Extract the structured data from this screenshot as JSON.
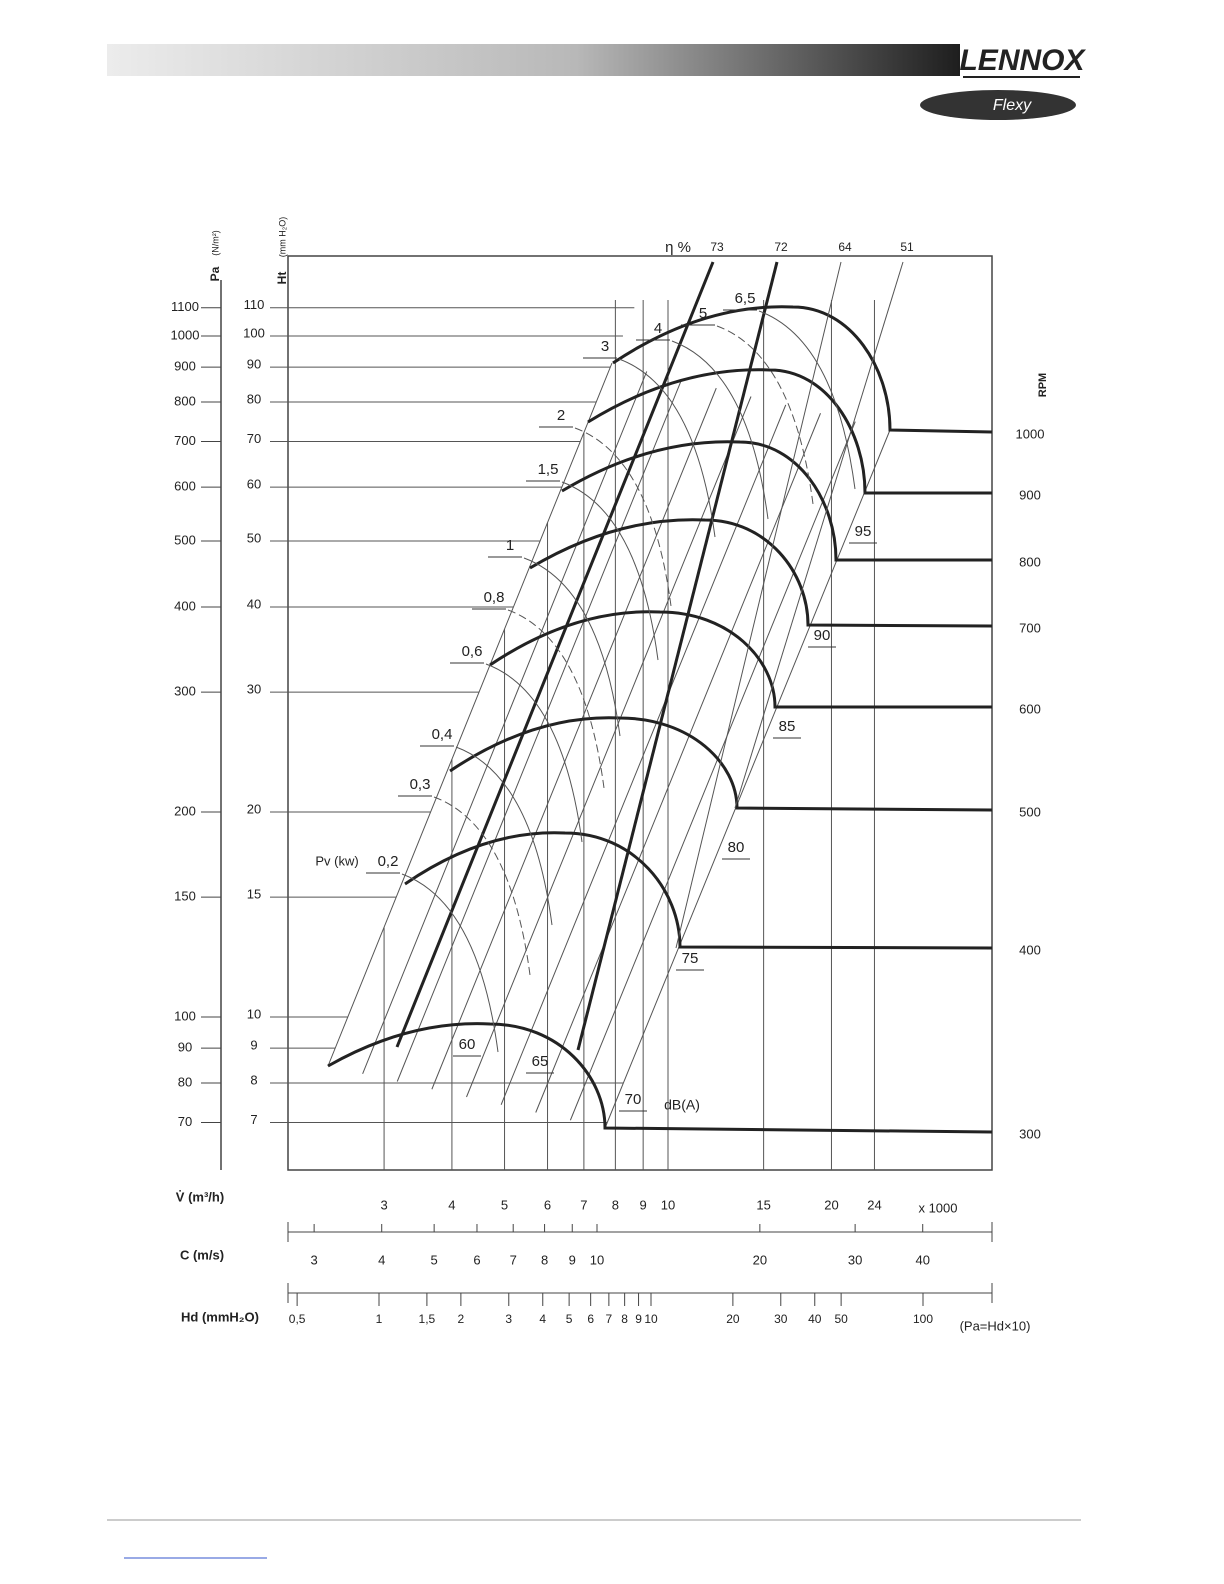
{
  "header": {
    "brand": "LENNOX",
    "product": "Flexy"
  },
  "diagram": {
    "pa_axis": {
      "title": "Pa",
      "unit": "(N/m²)",
      "ticks": [
        "1100",
        "1000",
        "900",
        "800",
        "700",
        "600",
        "500",
        "400",
        "300",
        "200",
        "150",
        "100",
        "90",
        "80",
        "70"
      ]
    },
    "ht_axis": {
      "title": "Ht",
      "unit": "(mm H₂O)",
      "ticks": [
        "110",
        "100",
        "90",
        "80",
        "70",
        "60",
        "50",
        "40",
        "30",
        "20",
        "15",
        "10",
        "9",
        "8",
        "7"
      ]
    },
    "rpm_axis": {
      "title": "RPM",
      "ticks": [
        "1000",
        "900",
        "800",
        "700",
        "600",
        "500",
        "400",
        "300"
      ]
    },
    "efficiency": {
      "title": "η %",
      "values": [
        "73",
        "72",
        "64",
        "51"
      ]
    },
    "power": {
      "title": "Pv (kw)",
      "values": [
        "0,2",
        "0,3",
        "0,4",
        "0,6",
        "0,8",
        "1",
        "1,5",
        "2",
        "3",
        "4",
        "5",
        "6,5"
      ]
    },
    "noise": {
      "unit": "dB(A)",
      "values": [
        "60",
        "65",
        "70",
        "75",
        "80",
        "85",
        "90",
        "95"
      ]
    },
    "flow_axis": {
      "title": "V̇ (m³/h)",
      "ticks": [
        "3",
        "4",
        "5",
        "6",
        "7",
        "8",
        "9",
        "10",
        "15",
        "20",
        "24"
      ],
      "multiplier": "x 1000"
    },
    "velocity_axis": {
      "title": "C (m/s)",
      "ticks": [
        "3",
        "4",
        "5",
        "6",
        "7",
        "8",
        "9",
        "10",
        "20",
        "30",
        "40"
      ]
    },
    "dynamic_pressure_axis": {
      "title": "Hd (mmH₂O)",
      "ticks": [
        "0,5",
        "1",
        "1,5",
        "2",
        "3",
        "4",
        "5",
        "6",
        "7",
        "8",
        "9",
        "10",
        "20",
        "30",
        "40",
        "50",
        "100"
      ],
      "note": "(Pa=Hd×10)"
    }
  }
}
